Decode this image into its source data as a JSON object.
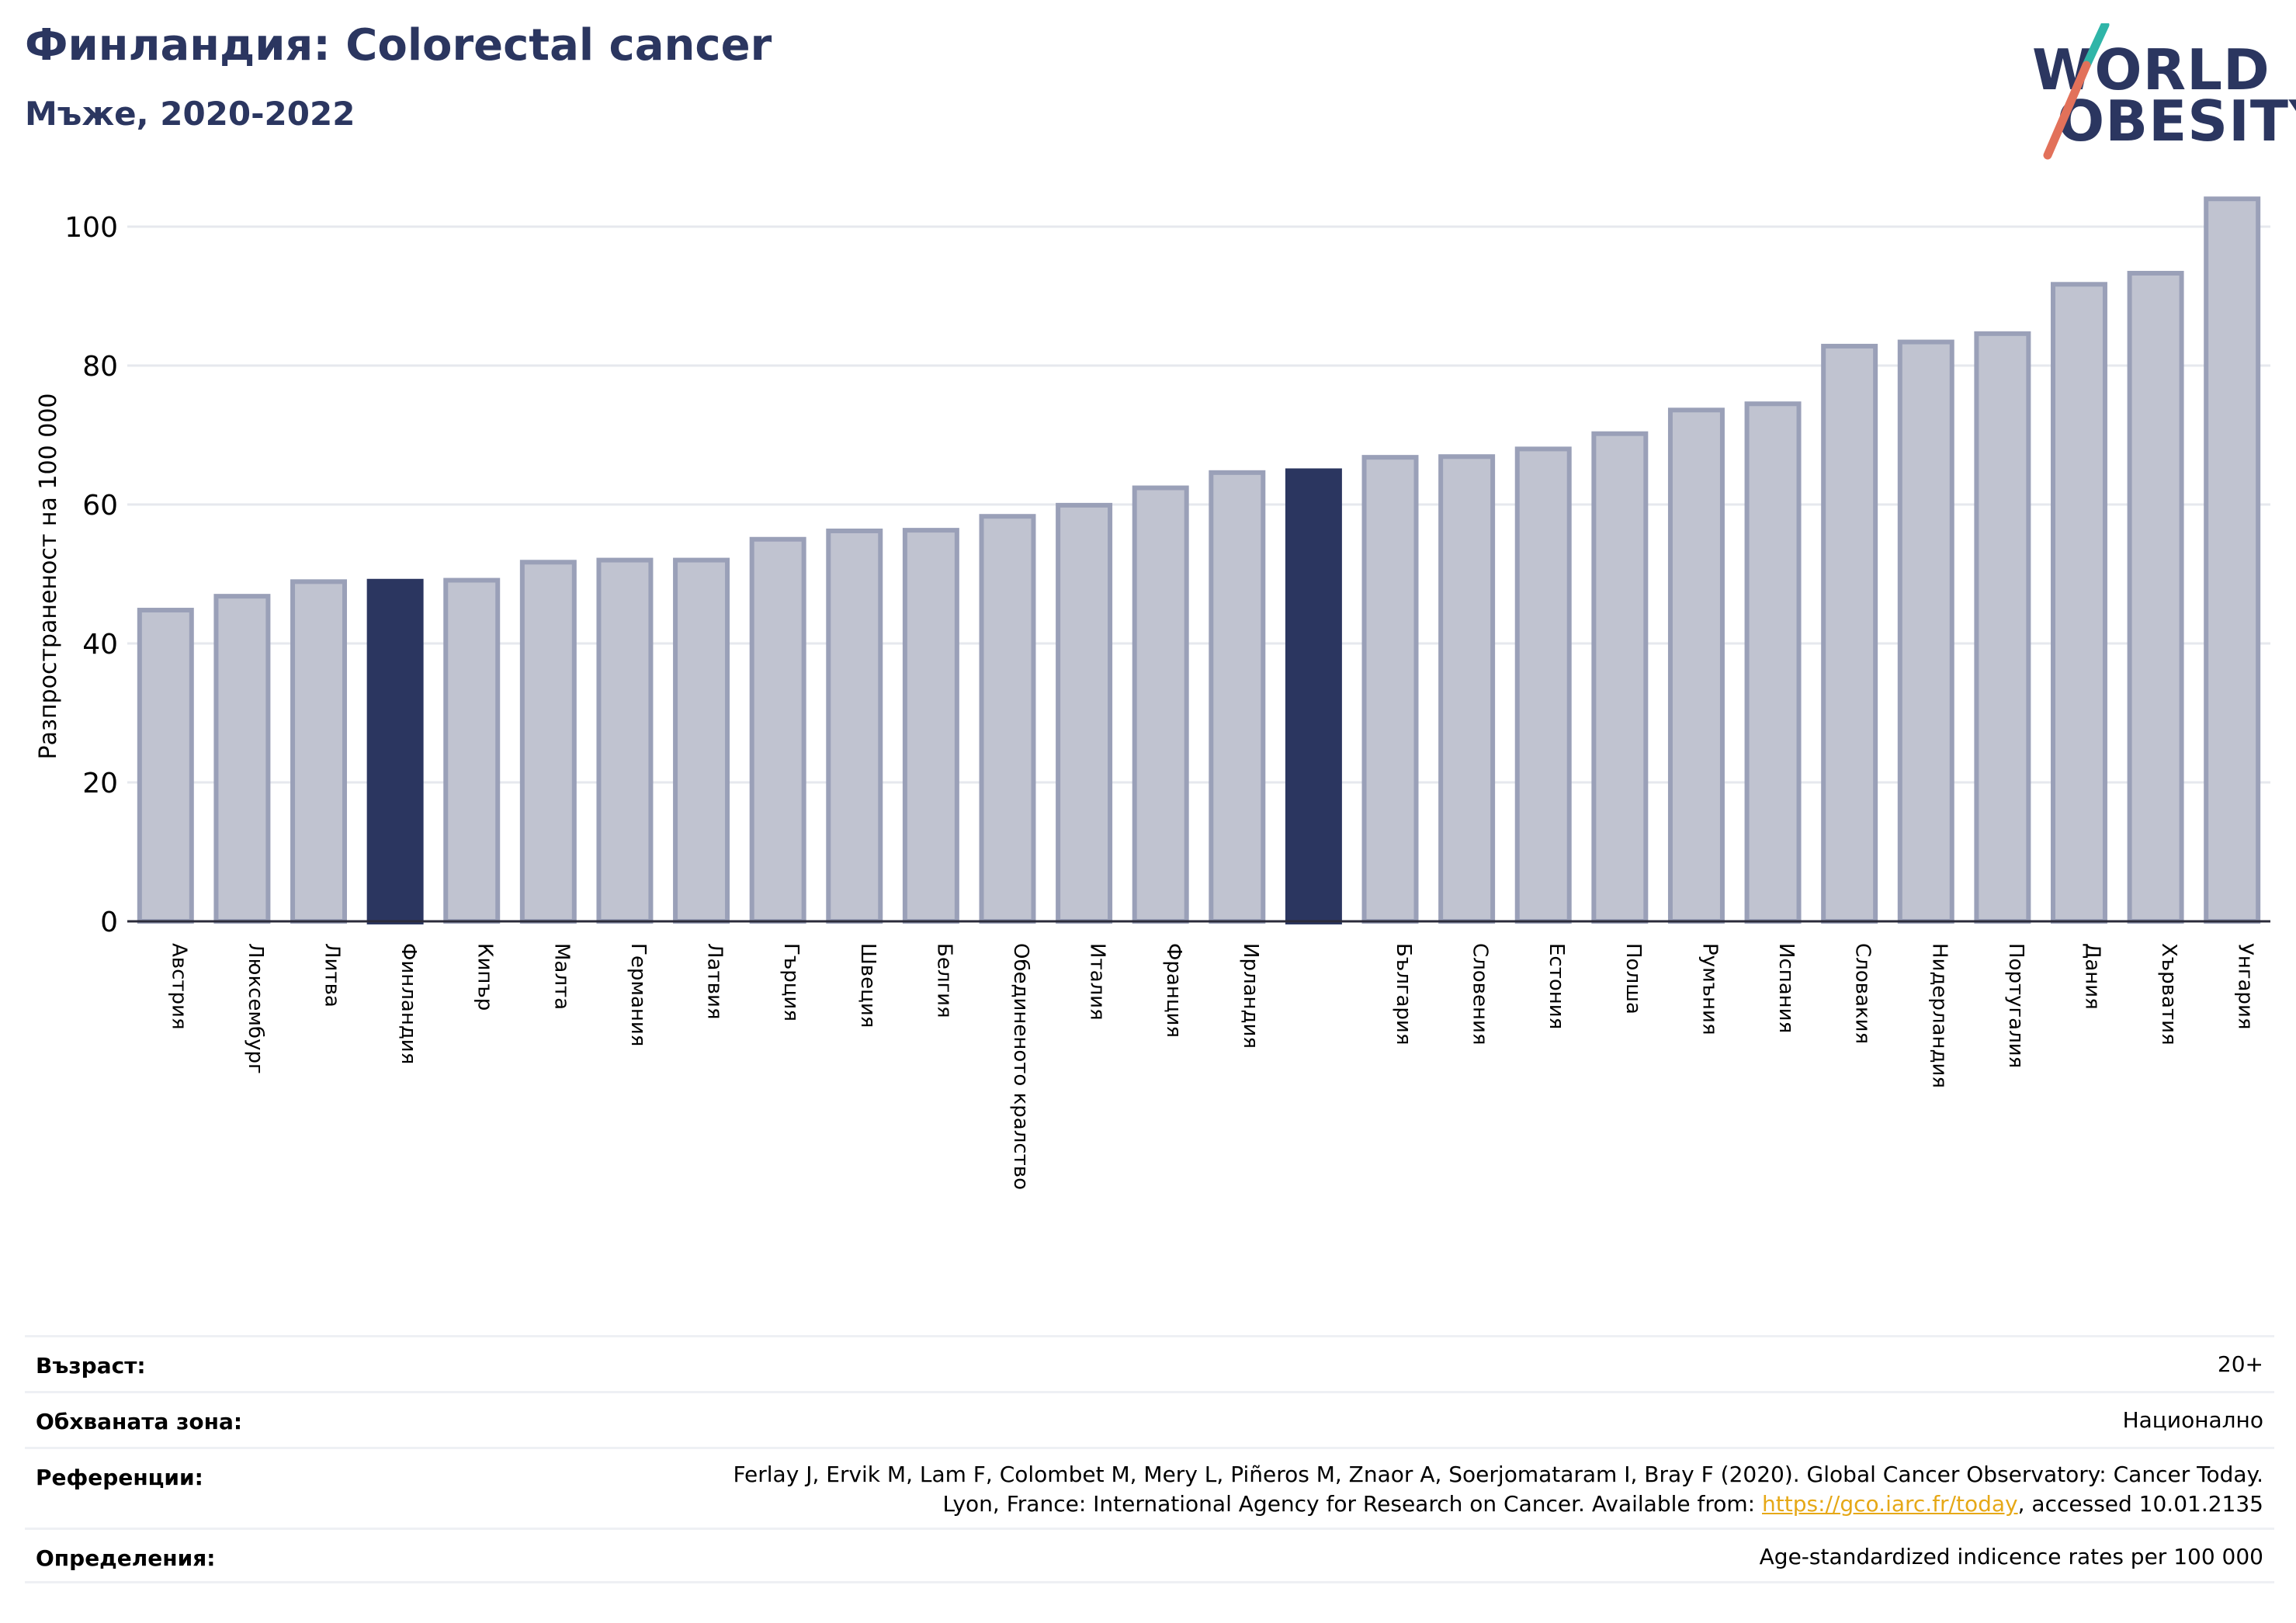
{
  "header": {
    "title": "Финландия: Colorectal cancer",
    "subtitle": "Мъже, 2020-2022"
  },
  "logo": {
    "line1": "WORLD",
    "line2": "OBESITY"
  },
  "colors": {
    "highlight": "#2b3660",
    "bar_fill": "#c0c3d0",
    "bar_stroke": "#9aa0b8",
    "grid": "#e6e8ee",
    "text_dark": "#2b3660",
    "link": "#e6a817",
    "logo_slash_top": "#2fb5a8",
    "logo_slash_bottom": "#e2715a"
  },
  "chart_data": {
    "type": "bar",
    "ylabel": "Разпространеност  на 100 000",
    "ylim": [
      0,
      105
    ],
    "yticks": [
      0,
      20,
      40,
      60,
      80,
      100
    ],
    "grid": true,
    "categories": [
      "Австрия",
      "Люксембург",
      "Литва",
      "Финландия",
      "Кипър",
      "Малта",
      "Германия",
      "Латвия",
      "Гърция",
      "Швеция",
      "Белгия",
      "Обединеното кралство",
      "Италия",
      "Франция",
      "Ирландия",
      "",
      "България",
      "Словения",
      "Естония",
      "Полша",
      "Румъния",
      "Испания",
      "Словакия",
      "Нидерландия",
      "Португалия",
      "Дания",
      "Хърватия",
      "Унгария"
    ],
    "values": [
      44.8,
      46.8,
      48.9,
      49.3,
      49.1,
      51.7,
      52.0,
      52.0,
      55.0,
      56.2,
      56.3,
      58.3,
      59.9,
      62.4,
      64.6,
      65.2,
      66.8,
      66.9,
      68.0,
      70.2,
      73.6,
      74.5,
      82.8,
      83.4,
      84.6,
      91.7,
      93.3,
      104.0
    ],
    "highlighted": [
      3,
      15
    ]
  },
  "info": [
    {
      "key": "Възраст:",
      "value": [
        "20+"
      ]
    },
    {
      "key": "Обхваната зона:",
      "value": [
        "Национално"
      ]
    },
    {
      "key": "Референции:",
      "value": [
        "Ferlay J, Ervik M, Lam F, Colombet M, Mery L, Piñeros M, Znaor A, Soerjomataram I, Bray F (2020). Global Cancer Observatory: Cancer Today."
      ],
      "value2_pre": "Lyon, France: International Agency for Research on Cancer. Available from: ",
      "value2_link": "https://gco.iarc.fr/today",
      "value2_post": ", accessed 10.01.2135"
    },
    {
      "key": "Определения:",
      "value": [
        "Age-standardized indicence rates per 100 000"
      ]
    }
  ]
}
